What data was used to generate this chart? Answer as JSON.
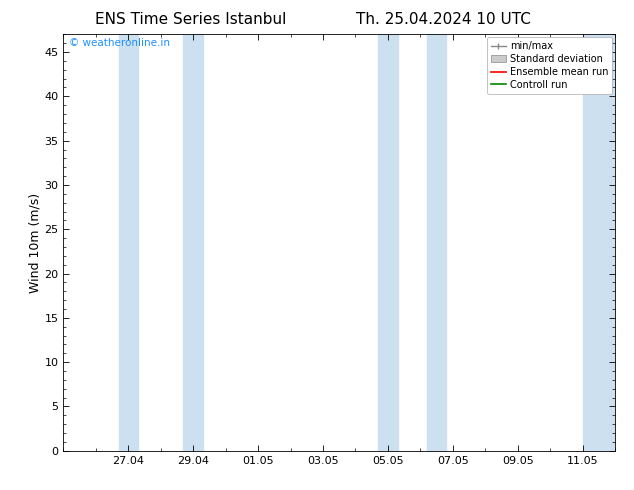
{
  "title_left": "ENS Time Series Istanbul",
  "title_right": "Th. 25.04.2024 10 UTC",
  "ylabel": "Wind 10m (m/s)",
  "bg_color": "#ffffff",
  "plot_bg_color": "#ffffff",
  "ylim": [
    0,
    47
  ],
  "yticks": [
    0,
    5,
    10,
    15,
    20,
    25,
    30,
    35,
    40,
    45
  ],
  "xtick_labels": [
    "27.04",
    "29.04",
    "01.05",
    "03.05",
    "05.05",
    "07.05",
    "09.05",
    "11.05"
  ],
  "xtick_positions": [
    2,
    4,
    6,
    8,
    10,
    12,
    14,
    16
  ],
  "xlim": [
    0,
    17
  ],
  "shaded_regions": [
    [
      1.8,
      2.2
    ],
    [
      3.8,
      4.2
    ],
    [
      9.8,
      10.2
    ],
    [
      11.3,
      11.7
    ],
    [
      15.8,
      17.0
    ]
  ],
  "shade_color": "#cce0f0",
  "watermark_text": "© weatheronline.in",
  "watermark_color": "#1e90ff",
  "legend_labels": [
    "min/max",
    "Standard deviation",
    "Ensemble mean run",
    "Controll run"
  ],
  "legend_colors_line": [
    "#888888",
    "#cccccc",
    "#ff0000",
    "#008800"
  ],
  "font_family": "DejaVu Sans",
  "title_fontsize": 11,
  "ylabel_fontsize": 9,
  "tick_fontsize": 8,
  "legend_fontsize": 7
}
